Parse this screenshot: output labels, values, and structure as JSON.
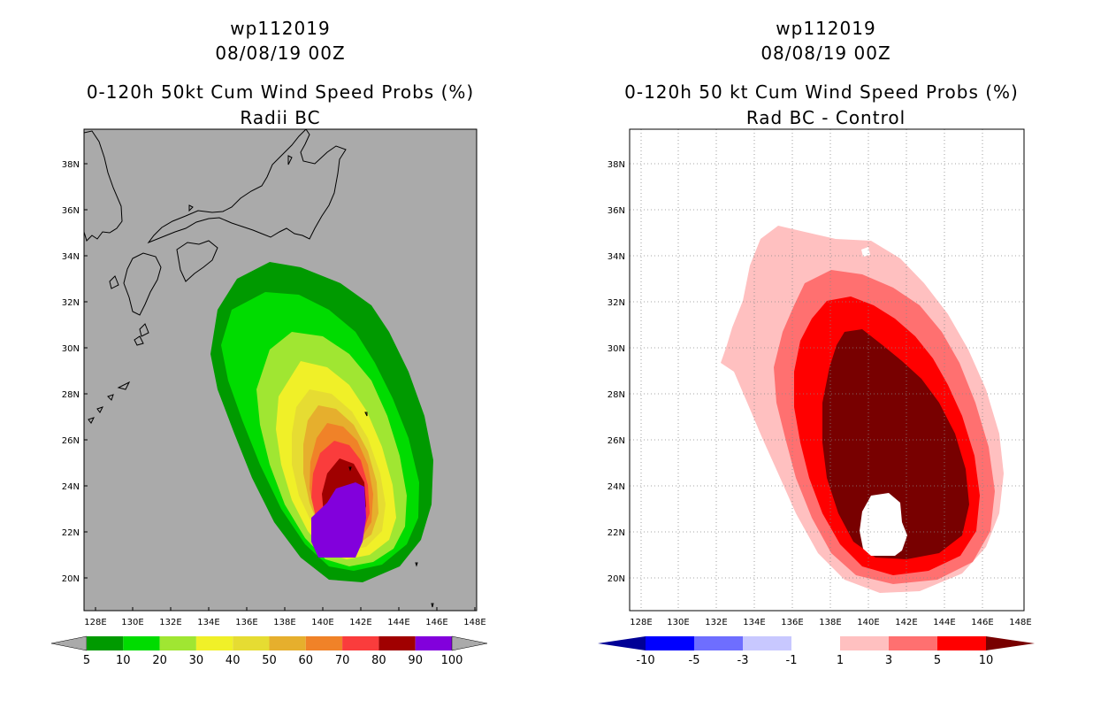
{
  "left_panel": {
    "storm_id": "wp112019",
    "date": "08/08/19 00Z",
    "title": "0-120h 50kt Cum Wind Speed Probs (%)",
    "subtitle": "Radii BC",
    "lat_labels": [
      "38N",
      "36N",
      "34N",
      "32N",
      "30N",
      "28N",
      "26N",
      "24N",
      "22N",
      "20N"
    ],
    "lon_labels": [
      "128E",
      "130E",
      "132E",
      "134E",
      "136E",
      "138E",
      "140E",
      "142E",
      "144E",
      "146E",
      "148E"
    ],
    "colorbar": {
      "labels": [
        "5",
        "10",
        "20",
        "30",
        "40",
        "50",
        "60",
        "70",
        "80",
        "90",
        "100"
      ],
      "colors": [
        "#009a00",
        "#00dc00",
        "#a0e632",
        "#f0f028",
        "#e6dc32",
        "#e6af2d",
        "#f08228",
        "#fa3c3c",
        "#a00000",
        "#8200dc"
      ]
    },
    "background_color": "#aaaaaa"
  },
  "right_panel": {
    "storm_id": "wp112019",
    "date": "08/08/19 00Z",
    "title": "0-120h 50 kt Cum Wind Speed Probs (%)",
    "subtitle": "Rad BC - Control",
    "lat_labels": [
      "38N",
      "36N",
      "34N",
      "32N",
      "30N",
      "28N",
      "26N",
      "24N",
      "22N",
      "20N"
    ],
    "lon_labels": [
      "128E",
      "130E",
      "132E",
      "134E",
      "136E",
      "138E",
      "140E",
      "142E",
      "144E",
      "146E",
      "148E"
    ],
    "colorbar": {
      "labels": [
        "-10",
        "-5",
        "-3",
        "-1",
        "1",
        "3",
        "5",
        "10"
      ],
      "colors": [
        "#000096",
        "#0000ff",
        "#6e6eff",
        "#c8c8ff",
        "#ffffff",
        "#ffc0c0",
        "#ff7070",
        "#ff0000",
        "#780000"
      ]
    },
    "background_color": "#ffffff"
  }
}
